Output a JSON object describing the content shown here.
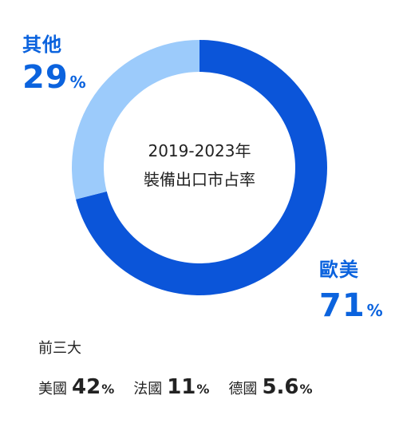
{
  "chart_data": {
    "type": "donut",
    "center_text": [
      "2019-2023年",
      "裝備出口市占率"
    ],
    "slices": [
      {
        "name": "歐美",
        "value": 71,
        "unit": "%",
        "color": "#0b55d9"
      },
      {
        "name": "其他",
        "value": 29,
        "unit": "%",
        "color": "#9ccbfb"
      }
    ],
    "label_color": "#0b63de",
    "breakdown": {
      "title": "前三大",
      "items": [
        {
          "name": "美國",
          "value": "42",
          "unit": "%"
        },
        {
          "name": "法國",
          "value": "11",
          "unit": "%"
        },
        {
          "name": "德國",
          "value": "5.6",
          "unit": "%"
        }
      ]
    }
  }
}
